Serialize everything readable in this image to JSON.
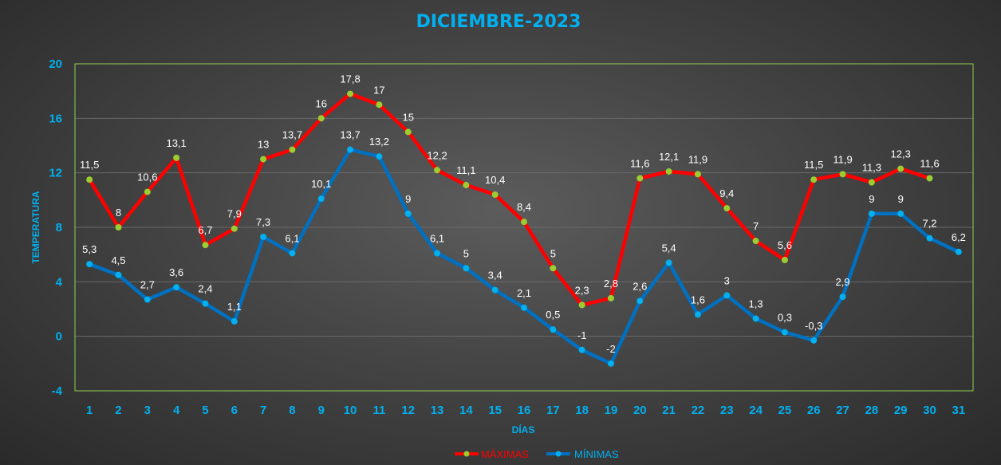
{
  "chart_data": {
    "type": "line",
    "title": "DICIEMBRE-2023",
    "xlabel": "DÍAS",
    "ylabel": "TEMPERATURA",
    "ylim": [
      -4,
      20
    ],
    "yticks": [
      "-4",
      "0",
      "4",
      "8",
      "12",
      "16",
      "20"
    ],
    "grid": true,
    "legend_position": "bottom",
    "categories": [
      "1",
      "2",
      "3",
      "4",
      "5",
      "6",
      "7",
      "8",
      "9",
      "10",
      "11",
      "12",
      "13",
      "14",
      "15",
      "16",
      "17",
      "18",
      "19",
      "20",
      "21",
      "22",
      "23",
      "24",
      "25",
      "26",
      "27",
      "28",
      "29",
      "30",
      "31"
    ],
    "series": [
      {
        "name": "MÁXIMAS",
        "color": "#ff0000",
        "marker_color": "#9acd32",
        "values": [
          11.5,
          8,
          10.6,
          13.1,
          6.7,
          7.9,
          13,
          13.7,
          16,
          17.8,
          17,
          15,
          12.2,
          11.1,
          10.4,
          8.4,
          5,
          2.3,
          2.8,
          11.6,
          12.1,
          11.9,
          9.4,
          7,
          5.6,
          11.5,
          11.9,
          11.3,
          12.3,
          11.6,
          null
        ],
        "labels": [
          "11,5",
          "8",
          "10,6",
          "13,1",
          "6,7",
          "7,9",
          "13",
          "13,7",
          "16",
          "17,8",
          "17",
          "15",
          "12,2",
          "11,1",
          "10,4",
          "8,4",
          "5",
          "2,3",
          "2,8",
          "11,6",
          "12,1",
          "11,9",
          "9,4",
          "7",
          "5,6",
          "11,5",
          "11,9",
          "11,3",
          "12,3",
          "11,6",
          ""
        ]
      },
      {
        "name": "MÍNIMAS",
        "color": "#0070c0",
        "marker_color": "#00b0f0",
        "values": [
          5.3,
          4.5,
          2.7,
          3.6,
          2.4,
          1.1,
          7.3,
          6.1,
          10.1,
          13.7,
          13.2,
          9,
          6.1,
          5,
          3.4,
          2.1,
          0.5,
          -1,
          -2,
          2.6,
          5.4,
          1.6,
          3,
          1.3,
          0.3,
          -0.3,
          2.9,
          9,
          9,
          7.2,
          6.2
        ],
        "labels": [
          "5,3",
          "4,5",
          "2,7",
          "3,6",
          "2,4",
          "1,1",
          "7,3",
          "6,1",
          "10,1",
          "13,7",
          "13,2",
          "9",
          "6,1",
          "5",
          "3,4",
          "2,1",
          "0,5",
          "-1",
          "-2",
          "2,6",
          "5,4",
          "1,6",
          "3",
          "1,3",
          "0,3",
          "-0,3",
          "2,9",
          "9",
          "9",
          "7,2",
          "6,2"
        ]
      }
    ]
  }
}
